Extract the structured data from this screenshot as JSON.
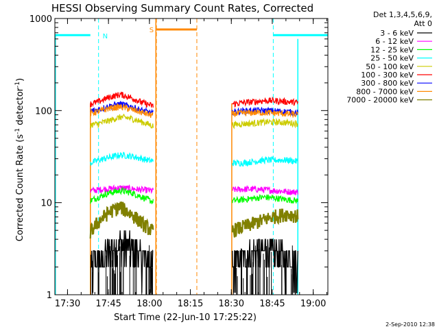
{
  "chart_data": {
    "type": "line",
    "title": "HESSI Observing Summary Count Rates, Corrected",
    "xlabel": "Start Time (22-Jun-10 17:25:22)",
    "ylabel": "Corrected Count Rate (s⁻¹ detector⁻¹)",
    "ylabel_parts": [
      "Corrected Count Rate (s",
      "-1",
      " detector",
      "-1",
      ")"
    ],
    "x_unit": "minutes after 17:25:22",
    "xlim": [
      0,
      100
    ],
    "ylim": [
      1,
      1000
    ],
    "yscale": "log",
    "grid": false,
    "legend_position": "top-right",
    "x_ticks": [
      {
        "label": "17:30",
        "x": 4.633
      },
      {
        "label": "17:45",
        "x": 19.633
      },
      {
        "label": "18:00",
        "x": 34.633
      },
      {
        "label": "18:15",
        "x": 49.633
      },
      {
        "label": "18:30",
        "x": 64.633
      },
      {
        "label": "18:45",
        "x": 79.633
      },
      {
        "label": "19:00",
        "x": 94.633
      }
    ],
    "y_ticks": [
      {
        "label": "1",
        "y": 1
      },
      {
        "label": "10",
        "y": 10
      },
      {
        "label": "100",
        "y": 100
      },
      {
        "label": "1000",
        "y": 1000
      }
    ],
    "legend_header": [
      "Det 1,3,4,5,6,9,",
      "Att 0"
    ],
    "series": [
      {
        "name": "3 - 6 keV",
        "color": "#000000",
        "segments": [
          {
            "x": [
              13,
              16,
              20,
              24,
              28,
              32,
              36
            ],
            "y": [
              2.0,
              2.4,
              2.9,
              3.5,
              3.2,
              2.5,
              2.0
            ]
          },
          {
            "x": [
              65,
              69,
              73,
              77,
              81,
              85,
              89
            ],
            "y": [
              2.2,
              2.5,
              2.8,
              3.0,
              2.8,
              2.5,
              2.2
            ]
          }
        ]
      },
      {
        "name": "6 - 12 keV",
        "color": "#ff00ff",
        "segments": [
          {
            "x": [
              13,
              16,
              20,
              24,
              28,
              32,
              36
            ],
            "y": [
              13.5,
              13.8,
              14.2,
              14.5,
              14.2,
              13.8,
              13.5
            ]
          },
          {
            "x": [
              65,
              69,
              73,
              77,
              81,
              85,
              89
            ],
            "y": [
              13.8,
              14.0,
              14.0,
              13.8,
              13.5,
              13.2,
              13.0
            ]
          }
        ]
      },
      {
        "name": "12 - 25 keV",
        "color": "#00ff00",
        "segments": [
          {
            "x": [
              13,
              16,
              20,
              24,
              28,
              32,
              36
            ],
            "y": [
              10.5,
              11.5,
              12.8,
              13.5,
              12.8,
              11.5,
              10.2
            ]
          },
          {
            "x": [
              65,
              69,
              73,
              77,
              81,
              85,
              89
            ],
            "y": [
              10.5,
              10.8,
              11.2,
              11.5,
              11.2,
              10.8,
              10.5
            ]
          }
        ]
      },
      {
        "name": "25 - 50 keV",
        "color": "#00ffff",
        "segments": [
          {
            "x": [
              13,
              16,
              20,
              24,
              28,
              32,
              36
            ],
            "y": [
              27,
              29,
              31,
              33,
              32,
              30,
              28
            ]
          },
          {
            "x": [
              65,
              69,
              73,
              77,
              81,
              85,
              89
            ],
            "y": [
              27,
              27,
              28,
              29,
              29,
              29,
              28
            ]
          }
        ]
      },
      {
        "name": "50 - 100 keV",
        "color": "#cccc00",
        "segments": [
          {
            "x": [
              13,
              16,
              20,
              24,
              28,
              32,
              36
            ],
            "y": [
              70,
              72,
              78,
              85,
              82,
              75,
              68
            ]
          },
          {
            "x": [
              65,
              69,
              73,
              77,
              81,
              85,
              89
            ],
            "y": [
              70,
              72,
              73,
              75,
              75,
              74,
              72
            ]
          }
        ]
      },
      {
        "name": "100 - 300 keV",
        "color": "#ff0000",
        "segments": [
          {
            "x": [
              13,
              16,
              20,
              24,
              28,
              32,
              36
            ],
            "y": [
              118,
              125,
              140,
              150,
              138,
              122,
              112
            ]
          },
          {
            "x": [
              65,
              69,
              73,
              77,
              81,
              85,
              89
            ],
            "y": [
              118,
              122,
              125,
              128,
              128,
              125,
              122
            ]
          }
        ]
      },
      {
        "name": "300 - 800 keV",
        "color": "#0000ff",
        "segments": [
          {
            "x": [
              13,
              16,
              20,
              24,
              28,
              32,
              36
            ],
            "y": [
              98,
              103,
              112,
              118,
              110,
              100,
              93
            ]
          },
          {
            "x": [
              65,
              69,
              73,
              77,
              81,
              85,
              89
            ],
            "y": [
              97,
              99,
              100,
              100,
              99,
              97,
              95
            ]
          }
        ]
      },
      {
        "name": "800 - 7000 keV",
        "color": "#ff8800",
        "segments": [
          {
            "x": [
              13,
              16,
              20,
              24,
              28,
              32,
              36
            ],
            "y": [
              93,
              98,
              106,
              110,
              103,
              95,
              88
            ]
          },
          {
            "x": [
              65,
              69,
              73,
              77,
              81,
              85,
              89
            ],
            "y": [
              92,
              94,
              95,
              95,
              94,
              92,
              90
            ]
          }
        ]
      },
      {
        "name": "7000 - 20000 keV",
        "color": "#808000",
        "segments": [
          {
            "x": [
              13,
              16,
              20,
              24,
              28,
              32,
              36
            ],
            "y": [
              4.8,
              6.2,
              8.0,
              9.0,
              7.5,
              6.0,
              4.8
            ]
          },
          {
            "x": [
              65,
              69,
              73,
              77,
              81,
              85,
              89
            ],
            "y": [
              5.0,
              5.5,
              6.0,
              6.6,
              7.2,
              7.6,
              7.2
            ]
          }
        ]
      }
    ],
    "annotations": [
      {
        "label": "N",
        "color": "#00ffff",
        "start": 16.0,
        "end": 80.0,
        "marker_y": 660,
        "bars": [
          {
            "from": 0,
            "to": 13.0
          },
          {
            "from": 80.0,
            "to": 100
          }
        ]
      },
      {
        "label": "S",
        "color": "#ff8800",
        "start": 37.2,
        "end": 52.0,
        "marker_y": 760,
        "bars": [
          {
            "from": 37.2,
            "to": 52.0
          }
        ]
      }
    ],
    "rise_markers": [
      {
        "x": 13.0,
        "color": "#ff8800",
        "from_y": 1,
        "to_y": 120
      },
      {
        "x": 37.0,
        "color": "#ff8800",
        "from_y": 1,
        "to_y": 1000
      },
      {
        "x": 64.8,
        "color": "#ff8800",
        "from_y": 1,
        "to_y": 120
      },
      {
        "x": 89.0,
        "color": "#00ffff",
        "from_y": 1,
        "to_y": 600
      }
    ],
    "footer_date": "2-Sep-2010 12:38"
  }
}
